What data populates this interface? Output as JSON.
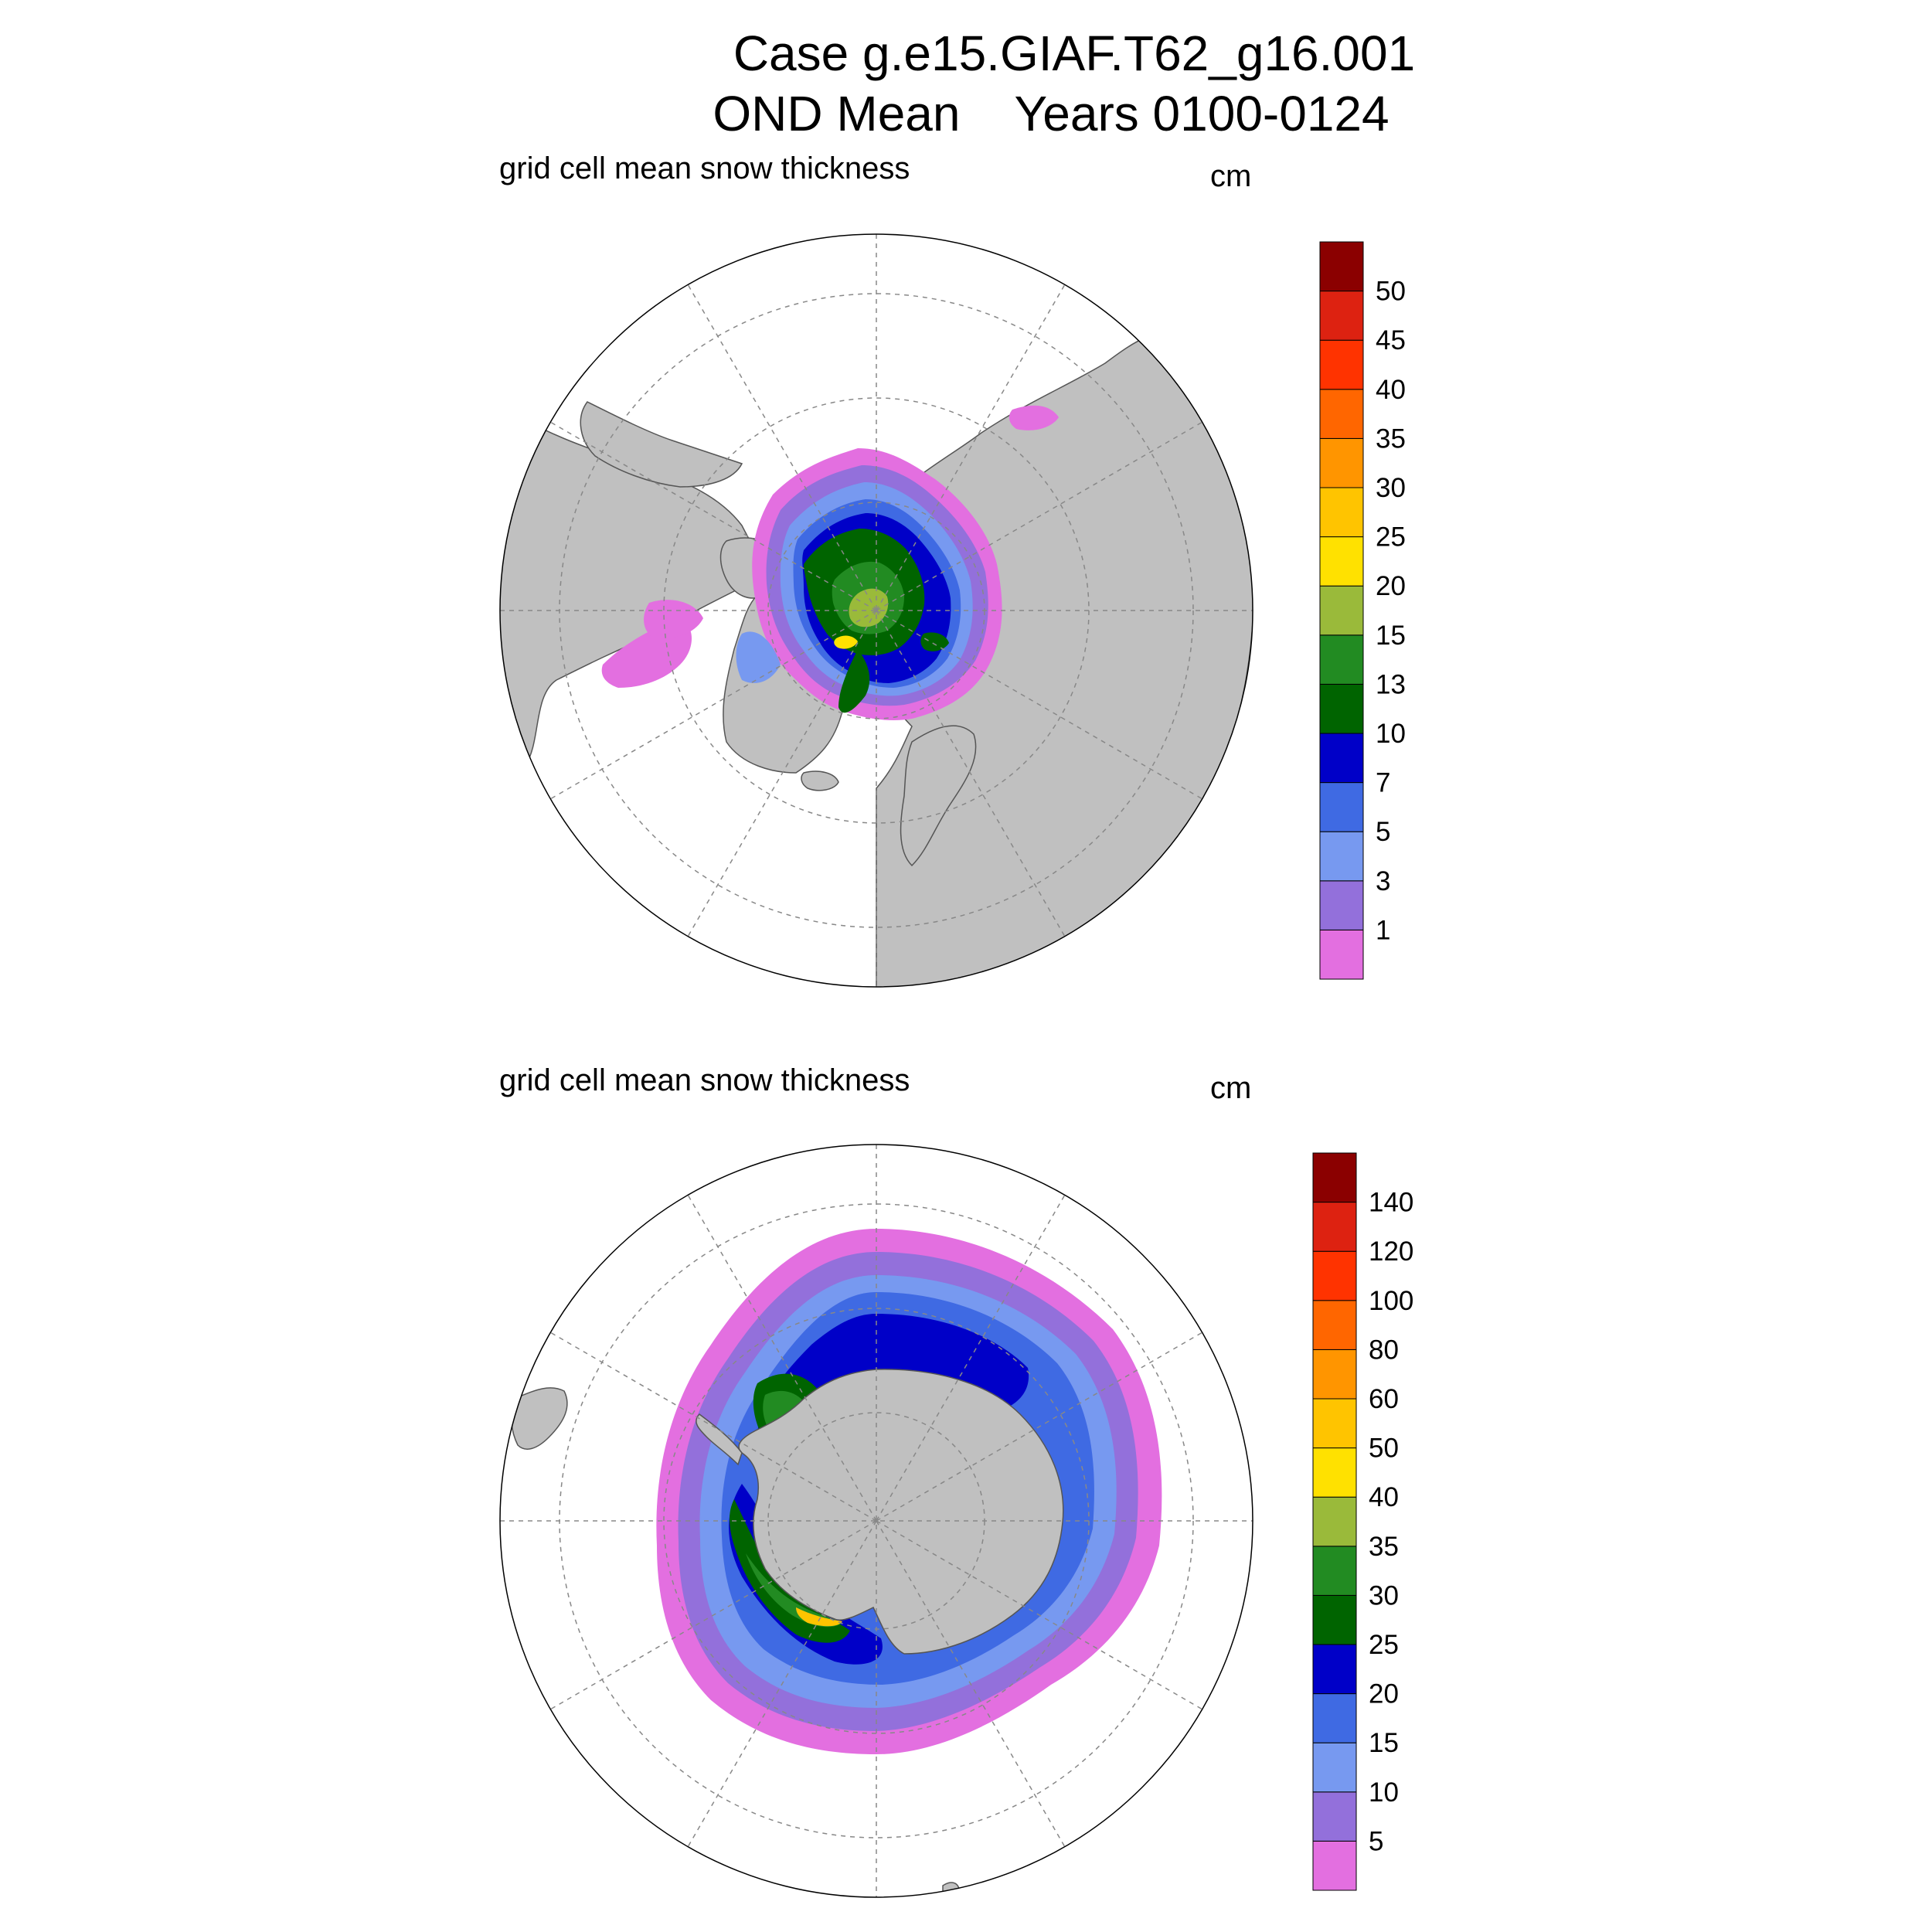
{
  "figure": {
    "title_line1": "Case g.e15.GIAF.T62_g16.001",
    "title_line2": "OND Mean    Years 0100-0124"
  },
  "panels": [
    {
      "id": "north",
      "hemisphere": "Northern",
      "label": "grid cell mean snow thickness",
      "units": "cm",
      "colorbar": {
        "tick_labels": [
          "1",
          "3",
          "5",
          "7",
          "10",
          "13",
          "15",
          "20",
          "25",
          "30",
          "35",
          "40",
          "45",
          "50"
        ],
        "colors": [
          "#e36fe0",
          "#9370db",
          "#7799f0",
          "#3f6ae3",
          "#0000c8",
          "#006400",
          "#228b22",
          "#9aba3a",
          "#ffe100",
          "#ffc400",
          "#ff9500",
          "#ff6600",
          "#ff3300",
          "#dd2211",
          "#8b0000"
        ]
      }
    },
    {
      "id": "south",
      "hemisphere": "Southern",
      "label": "grid cell mean snow thickness",
      "units": "cm",
      "colorbar": {
        "tick_labels": [
          "5",
          "10",
          "15",
          "20",
          "25",
          "30",
          "35",
          "40",
          "50",
          "60",
          "80",
          "100",
          "120",
          "140"
        ],
        "colors": [
          "#e36fe0",
          "#9370db",
          "#7799f0",
          "#3f6ae3",
          "#0000c8",
          "#006400",
          "#228b22",
          "#9aba3a",
          "#ffe100",
          "#ffc400",
          "#ff9500",
          "#ff6600",
          "#ff3300",
          "#dd2211",
          "#8b0000"
        ]
      }
    }
  ],
  "map_style": {
    "land_color": "#c0c0c0",
    "ocean_color": "#ffffff",
    "grid_color": "#888888",
    "projection": "polar stereographic"
  }
}
